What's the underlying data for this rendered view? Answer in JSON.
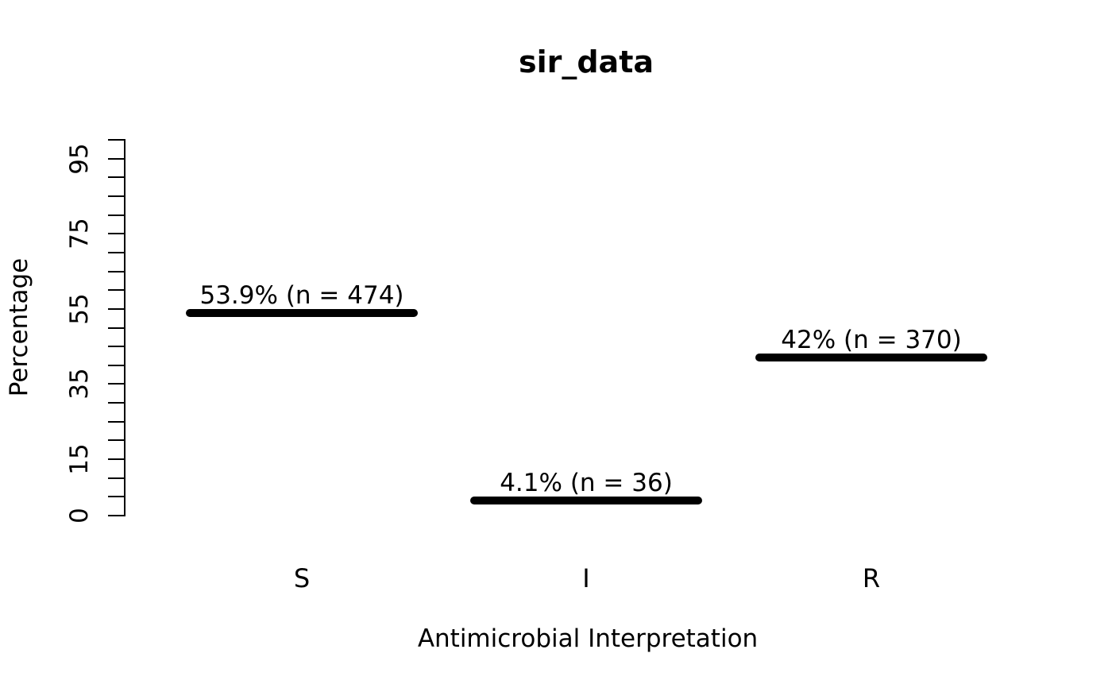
{
  "page": {
    "background": "#ffffff",
    "text_color": "#000000"
  },
  "chart_data": {
    "type": "bar",
    "style": "R base plot with thick horizontal segment bars",
    "title": "sir_data",
    "xlabel": "Antimicrobial Interpretation",
    "ylabel": "Percentage",
    "categories": [
      "S",
      "I",
      "R"
    ],
    "values": [
      53.9,
      4.1,
      42
    ],
    "counts": [
      474,
      36,
      370
    ],
    "bar_labels": [
      "53.9% (n = 474)",
      "4.1% (n = 36)",
      "42% (n = 370)"
    ],
    "ylim": [
      0,
      100
    ],
    "y_tick_step": 5,
    "y_labeled_ticks": [
      0,
      15,
      35,
      55,
      75,
      95
    ],
    "grid": false,
    "bar_color": "#000000",
    "axis_color": "#000000"
  }
}
